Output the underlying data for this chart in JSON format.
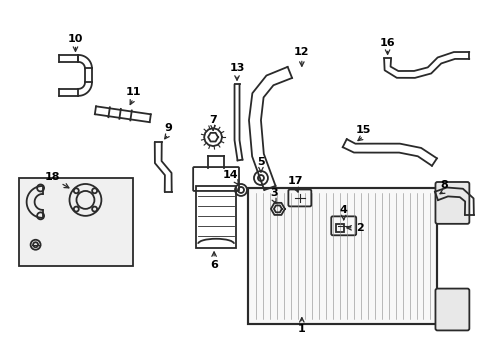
{
  "bg_color": "#ffffff",
  "line_color": "#2a2a2a",
  "label_color": "#000000",
  "lw": 1.3,
  "parts": {
    "10": {
      "label": [
        75,
        38
      ],
      "arrow_from": [
        75,
        44
      ],
      "arrow_to": [
        75,
        55
      ]
    },
    "11": {
      "label": [
        133,
        92
      ],
      "arrow_from": [
        133,
        98
      ],
      "arrow_to": [
        128,
        108
      ]
    },
    "9": {
      "label": [
        168,
        128
      ],
      "arrow_from": [
        168,
        134
      ],
      "arrow_to": [
        162,
        142
      ]
    },
    "18": {
      "label": [
        52,
        177
      ],
      "arrow_from": [
        60,
        183
      ],
      "arrow_to": [
        72,
        190
      ]
    },
    "7": {
      "label": [
        213,
        120
      ],
      "arrow_from": [
        213,
        126
      ],
      "arrow_to": [
        213,
        134
      ]
    },
    "13": {
      "label": [
        237,
        68
      ],
      "arrow_from": [
        237,
        74
      ],
      "arrow_to": [
        237,
        84
      ]
    },
    "5": {
      "label": [
        261,
        162
      ],
      "arrow_from": [
        261,
        168
      ],
      "arrow_to": [
        261,
        176
      ]
    },
    "14": {
      "label": [
        230,
        175
      ],
      "arrow_from": [
        236,
        181
      ],
      "arrow_to": [
        241,
        188
      ]
    },
    "6": {
      "label": [
        214,
        265
      ],
      "arrow_from": [
        214,
        259
      ],
      "arrow_to": [
        214,
        248
      ]
    },
    "12": {
      "label": [
        302,
        52
      ],
      "arrow_from": [
        302,
        58
      ],
      "arrow_to": [
        302,
        70
      ]
    },
    "16": {
      "label": [
        388,
        42
      ],
      "arrow_from": [
        388,
        48
      ],
      "arrow_to": [
        388,
        58
      ]
    },
    "15": {
      "label": [
        364,
        130
      ],
      "arrow_from": [
        364,
        136
      ],
      "arrow_to": [
        355,
        143
      ]
    },
    "3": {
      "label": [
        274,
        193
      ],
      "arrow_from": [
        274,
        199
      ],
      "arrow_to": [
        278,
        207
      ]
    },
    "17": {
      "label": [
        296,
        181
      ],
      "arrow_from": [
        296,
        187
      ],
      "arrow_to": [
        300,
        196
      ]
    },
    "4": {
      "label": [
        344,
        210
      ],
      "arrow_from": [
        344,
        216
      ],
      "arrow_to": [
        344,
        224
      ]
    },
    "2": {
      "label": [
        360,
        228
      ],
      "arrow_from": [
        354,
        228
      ],
      "arrow_to": [
        343,
        228
      ]
    },
    "8": {
      "label": [
        445,
        185
      ],
      "arrow_from": [
        445,
        191
      ],
      "arrow_to": [
        437,
        196
      ]
    },
    "1": {
      "label": [
        302,
        330
      ],
      "arrow_from": [
        302,
        324
      ],
      "arrow_to": [
        302,
        314
      ]
    }
  }
}
